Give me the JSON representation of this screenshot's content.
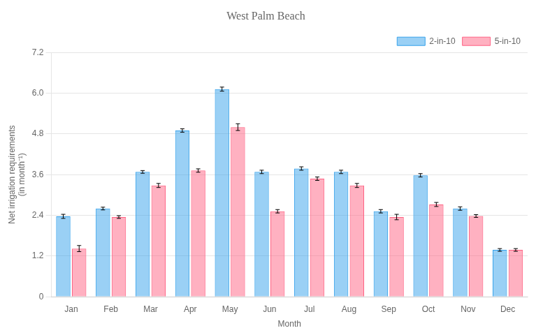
{
  "chart_data": {
    "type": "bar",
    "title": "West Palm Beach",
    "xlabel": "Month",
    "ylabel": "Net irrigation requirements\n(in month⁻¹)",
    "categories": [
      "Jan",
      "Feb",
      "Mar",
      "Apr",
      "May",
      "Jun",
      "Jul",
      "Aug",
      "Sep",
      "Oct",
      "Nov",
      "Dec"
    ],
    "series": [
      {
        "name": "2-in-10",
        "values": [
          2.37,
          2.6,
          3.68,
          4.9,
          6.12,
          3.68,
          3.78,
          3.68,
          2.52,
          3.58,
          2.6,
          1.38
        ],
        "errors": [
          0.06,
          0.04,
          0.04,
          0.05,
          0.06,
          0.05,
          0.05,
          0.05,
          0.05,
          0.05,
          0.05,
          0.04
        ]
      },
      {
        "name": "5-in-10",
        "values": [
          1.42,
          2.35,
          3.28,
          3.72,
          5.0,
          2.52,
          3.48,
          3.28,
          2.35,
          2.72,
          2.38,
          1.38
        ],
        "errors": [
          0.09,
          0.04,
          0.06,
          0.05,
          0.1,
          0.05,
          0.05,
          0.06,
          0.08,
          0.06,
          0.04,
          0.04
        ]
      }
    ],
    "ylim": [
      0,
      7.2
    ],
    "yticks": [
      0,
      1.2,
      2.4,
      3.6,
      4.8,
      {
        "value": 6.0,
        "label": "6.0"
      },
      7.2
    ],
    "grid": "y",
    "legend": "upper right"
  }
}
